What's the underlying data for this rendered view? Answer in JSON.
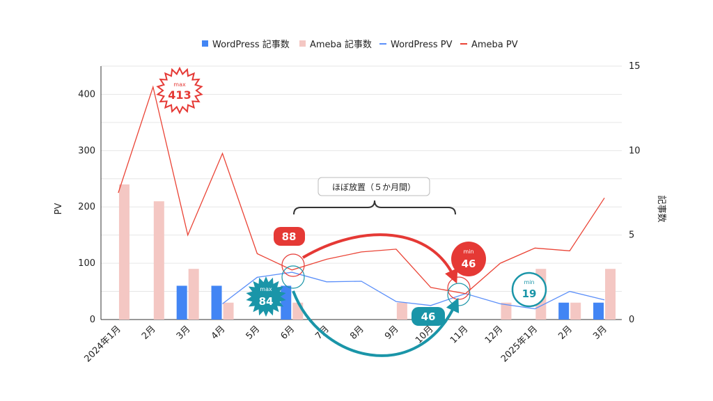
{
  "chart_data": {
    "type": "bar",
    "categories": [
      "2024年1月",
      "2月",
      "3月",
      "4月",
      "5月",
      "6月",
      "7月",
      "8月",
      "9月",
      "10月",
      "11月",
      "12月",
      "2025年1月",
      "2月",
      "3月"
    ],
    "series": [
      {
        "name": "WordPress 記事数",
        "type": "bar",
        "axis": "right",
        "color": "#4285f4",
        "values": [
          0,
          0,
          2,
          2,
          0,
          2,
          0,
          0,
          0,
          0,
          0,
          0,
          0,
          1,
          1
        ]
      },
      {
        "name": "Ameba 記事数",
        "type": "bar",
        "axis": "right",
        "color": "#f4c7c3",
        "values": [
          8,
          7,
          3,
          1,
          0,
          1,
          0,
          0,
          1,
          0,
          0,
          1,
          3,
          1,
          3
        ]
      },
      {
        "name": "WordPress PV",
        "type": "line",
        "axis": "left",
        "color": "#5b8ff9",
        "values": [
          null,
          null,
          null,
          28,
          75,
          84,
          67,
          68,
          32,
          25,
          46,
          28,
          19,
          50,
          35
        ]
      },
      {
        "name": "Ameba PV",
        "type": "line",
        "axis": "left",
        "color": "#ea4335",
        "values": [
          225,
          413,
          150,
          295,
          117,
          88,
          107,
          120,
          125,
          57,
          46,
          100,
          127,
          122,
          216
        ]
      }
    ],
    "ylabel_left": "PV",
    "ylabel_right": "記事数",
    "ylim_left": [
      0,
      450
    ],
    "yticks_left": [
      0,
      100,
      200,
      300,
      400
    ],
    "ylim_right": [
      0,
      15
    ],
    "yticks_right": [
      0,
      5,
      10,
      15
    ],
    "legend_position": "top",
    "grid": true,
    "annotations": {
      "ameba_max": {
        "small": "max",
        "value": "413"
      },
      "wp_max": {
        "small": "max",
        "value": "84"
      },
      "ameba_min": {
        "small": "min",
        "value": "46"
      },
      "wp_min": {
        "small": "min",
        "value": "19"
      },
      "ameba_drop_label": "88",
      "wp_drop_label": "46",
      "bracket_label": "ほぼ放置（５か月間）"
    }
  }
}
